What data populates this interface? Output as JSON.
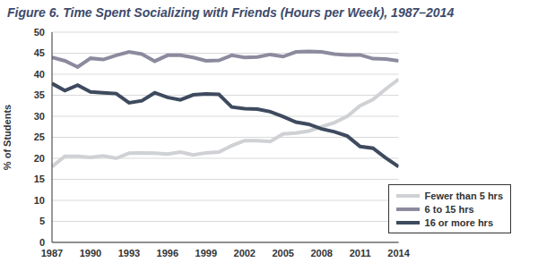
{
  "chart_data": {
    "type": "line",
    "title": "Figure 6. Time Spent Socializing with Friends (Hours per Week), 1987–2014",
    "y_label": "% of Students",
    "x": [
      1987,
      1988,
      1989,
      1990,
      1991,
      1992,
      1993,
      1994,
      1995,
      1996,
      1997,
      1998,
      1999,
      2000,
      2001,
      2002,
      2003,
      2004,
      2005,
      2006,
      2007,
      2008,
      2009,
      2010,
      2011,
      2012,
      2013,
      2014
    ],
    "xlim": [
      1987,
      2014
    ],
    "xticks": [
      1987,
      1990,
      1993,
      1996,
      1999,
      2002,
      2005,
      2008,
      2011,
      2014
    ],
    "ylim": [
      0,
      50
    ],
    "yticks": [
      0,
      5,
      10,
      15,
      20,
      25,
      30,
      35,
      40,
      45,
      50
    ],
    "grid": true,
    "legend": "lower right",
    "series": [
      {
        "name": "Fewer than 5 hrs",
        "color": "#cfd1d4",
        "values": [
          18,
          20.5,
          20.5,
          20.2,
          20.6,
          20,
          21.2,
          21.3,
          21.2,
          21,
          21.5,
          20.8,
          21.3,
          21.5,
          23,
          24.2,
          24.2,
          24,
          25.8,
          26,
          26.5,
          27.5,
          28.5,
          30,
          32.5,
          34,
          36.5,
          38.8
        ]
      },
      {
        "name": "6 to 15 hrs",
        "color": "#8b8a9e",
        "values": [
          44,
          43.2,
          41.7,
          43.8,
          43.5,
          44.5,
          45.3,
          44.8,
          43.1,
          44.5,
          44.5,
          44,
          43.2,
          43.3,
          44.5,
          44,
          44.1,
          44.7,
          44.2,
          45.3,
          45.4,
          45.3,
          44.8,
          44.6,
          44.6,
          43.7,
          43.6,
          43.2
        ]
      },
      {
        "name": "16 or more hrs",
        "color": "#3e4a5e",
        "values": [
          37.8,
          36.1,
          37.4,
          35.8,
          35.6,
          35.4,
          33.2,
          33.7,
          35.6,
          34.5,
          33.9,
          35.1,
          35.3,
          35.2,
          32.2,
          31.8,
          31.7,
          31.1,
          29.9,
          28.6,
          28.1,
          27,
          26.3,
          25.3,
          22.8,
          22.4,
          20.1,
          18
        ]
      }
    ]
  }
}
